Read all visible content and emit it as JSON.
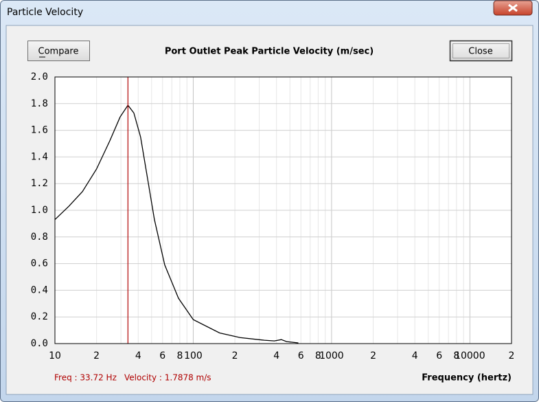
{
  "window": {
    "title": "Particle Velocity"
  },
  "buttons": {
    "compare": "Compare",
    "close": "Close"
  },
  "chart_data": {
    "type": "line",
    "title": "Port Outlet Peak Particle Velocity (m/sec)",
    "xlabel": "Frequency (hertz)",
    "x": [
      10,
      12.6,
      15.8,
      20,
      24.9,
      29.6,
      33.72,
      37.2,
      41.6,
      46.7,
      52.4,
      62.2,
      78.2,
      100,
      155,
      218,
      327,
      386,
      433,
      473,
      575
    ],
    "series": [
      {
        "color": "#000000",
        "values": [
          0.93,
          1.03,
          1.14,
          1.31,
          1.52,
          1.7,
          1.7878,
          1.73,
          1.55,
          1.24,
          0.93,
          0.59,
          0.34,
          0.18,
          0.08,
          0.045,
          0.025,
          0.02,
          0.03,
          0.015,
          0.005
        ]
      }
    ],
    "xscale": "log",
    "xlim": [
      10,
      20000
    ],
    "ylim": [
      0,
      2
    ],
    "xticks": [
      10,
      {
        "value": 20,
        "label": "2"
      },
      {
        "value": 40,
        "label": "4"
      },
      {
        "value": 60,
        "label": "6"
      },
      {
        "value": 80,
        "label": "8"
      },
      100,
      {
        "value": 200,
        "label": "2"
      },
      {
        "value": 400,
        "label": "4"
      },
      {
        "value": 600,
        "label": "6"
      },
      {
        "value": 800,
        "label": "8"
      },
      1000,
      {
        "value": 2000,
        "label": "2"
      },
      {
        "value": 4000,
        "label": "4"
      },
      {
        "value": 6000,
        "label": "6"
      },
      {
        "value": 8000,
        "label": "8"
      },
      10000,
      {
        "value": 20000,
        "label": "2"
      }
    ],
    "x_minor_grid": [
      30,
      50,
      70,
      90,
      300,
      500,
      700,
      900,
      3000,
      5000,
      7000,
      9000
    ],
    "yticks": [
      {
        "value": 0,
        "label": "0.0"
      },
      0.2,
      0.4,
      0.6,
      0.8,
      {
        "value": 1,
        "label": "1.0"
      },
      1.2,
      1.4,
      1.6,
      1.8,
      {
        "value": 2,
        "label": "2.0"
      }
    ],
    "grid": true,
    "cursor": {
      "x": 33.72,
      "color": "#b00000",
      "freq_label": "Freq : 33.72 Hz",
      "value_label": "Velocity : 1.7878 m/s"
    }
  }
}
